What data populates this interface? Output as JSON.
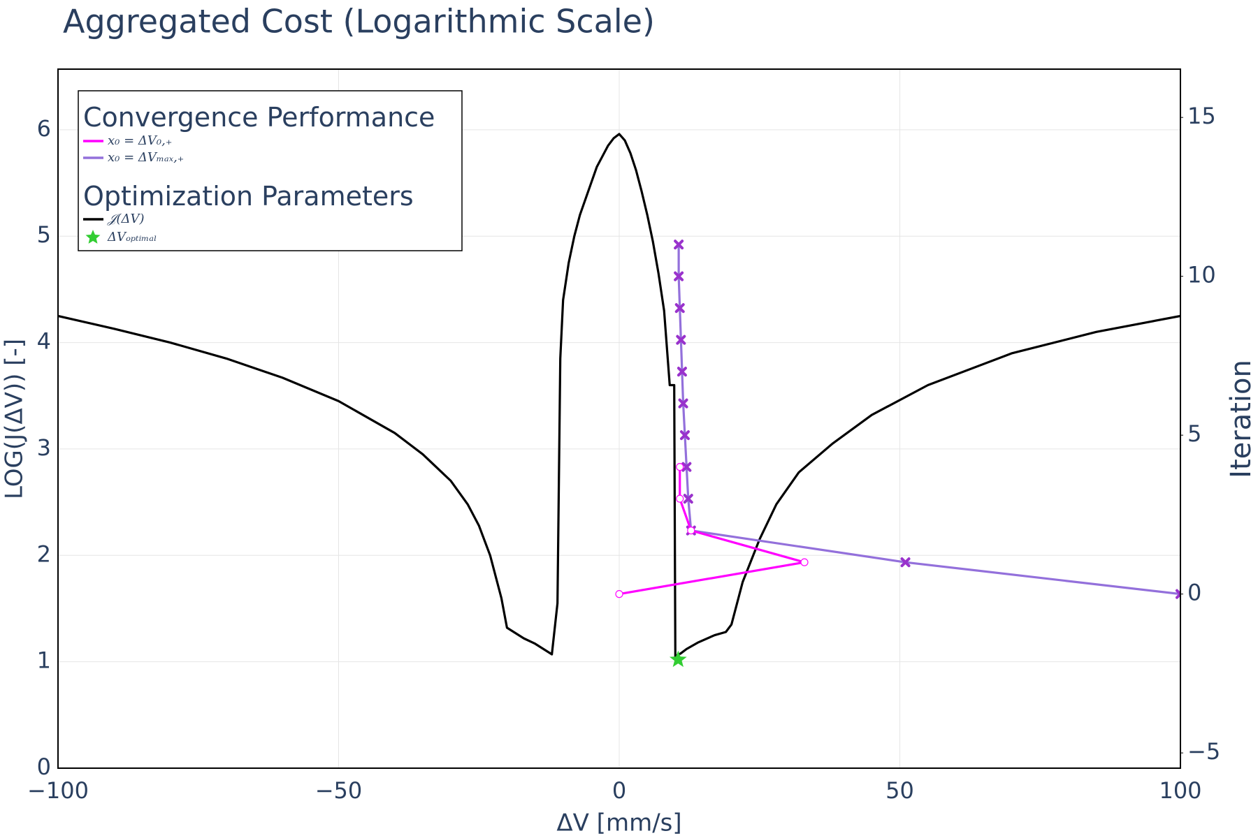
{
  "chart_data": {
    "type": "line",
    "title": "Aggregated Cost (Logarithmic Scale)",
    "xlabel": "ΔV [mm/s]",
    "ylabel": "LOG(J(ΔV)) [-]",
    "y2label": "Iteration",
    "xlim": [
      -100,
      100
    ],
    "xticks": [
      {
        "value": -100,
        "label": "−100"
      },
      {
        "value": -50,
        "label": "−50"
      },
      0,
      50,
      100
    ],
    "ylim": [
      0,
      6.57
    ],
    "yticks": [
      0,
      1,
      2,
      3,
      4,
      5,
      6
    ],
    "y2lim": [
      -5.48,
      16.52
    ],
    "y2ticks": [
      {
        "value": -5,
        "label": "−5"
      },
      0,
      5,
      10,
      15
    ],
    "grid": true,
    "legend_groups": [
      {
        "title": "Convergence Performance",
        "series": [
          0,
          1
        ]
      },
      {
        "title": "Optimization Parameters",
        "series": [
          2,
          3
        ]
      }
    ],
    "series": [
      {
        "name": "x₀ = ΔV₀,₊",
        "color": "#ff00ff",
        "marker": "circle-open",
        "mode": "lines+markers",
        "axis": "y2",
        "x": [
          0,
          33,
          12.8,
          10.8,
          10.8
        ],
        "values": [
          0,
          1,
          2,
          3,
          4
        ]
      },
      {
        "name": "x₀ = ΔVₘₐₓ,₊",
        "color": "#9370db",
        "marker_color": "#9932cc",
        "marker": "x",
        "mode": "lines+markers",
        "axis": "y2",
        "x": [
          100,
          51,
          12.8,
          12.3,
          12.0,
          11.7,
          11.4,
          11.2,
          11.0,
          10.8,
          10.6,
          10.6
        ],
        "values": [
          0,
          1,
          2,
          3,
          4,
          5,
          6,
          7,
          8,
          9,
          10,
          11
        ]
      },
      {
        "name": "𝒥(ΔV)",
        "color": "#000000",
        "mode": "lines",
        "x": [
          -100,
          -90,
          -80,
          -70,
          -60,
          -50,
          -40,
          -35,
          -30,
          -27,
          -25,
          -23,
          -21,
          -20,
          -17,
          -15,
          -12,
          -11,
          -10.5,
          -10,
          -9,
          -8,
          -7,
          -6,
          -5,
          -4,
          -3,
          -2,
          -1,
          0,
          1,
          2,
          3,
          4,
          5,
          6,
          7,
          8,
          9,
          9.8,
          10,
          11,
          12,
          14,
          17,
          19,
          20,
          22,
          25,
          28,
          32,
          38,
          45,
          55,
          70,
          85,
          100
        ],
        "values": [
          4.25,
          4.13,
          4.0,
          3.85,
          3.67,
          3.45,
          3.15,
          2.95,
          2.7,
          2.48,
          2.28,
          2.0,
          1.6,
          1.32,
          1.22,
          1.17,
          1.07,
          1.55,
          3.85,
          4.4,
          4.75,
          5.0,
          5.2,
          5.35,
          5.5,
          5.65,
          5.75,
          5.85,
          5.92,
          5.96,
          5.9,
          5.78,
          5.62,
          5.42,
          5.2,
          4.95,
          4.65,
          4.3,
          3.6,
          3.6,
          1.05,
          1.08,
          1.12,
          1.18,
          1.25,
          1.28,
          1.35,
          1.75,
          2.15,
          2.48,
          2.78,
          3.05,
          3.32,
          3.6,
          3.9,
          4.1,
          4.25
        ]
      },
      {
        "name": "ΔVₒₚₜᵢₘₐₗ",
        "color": "#32cd32",
        "marker": "star",
        "mode": "markers",
        "x": [
          10.5
        ],
        "values": [
          1.02
        ]
      }
    ]
  }
}
